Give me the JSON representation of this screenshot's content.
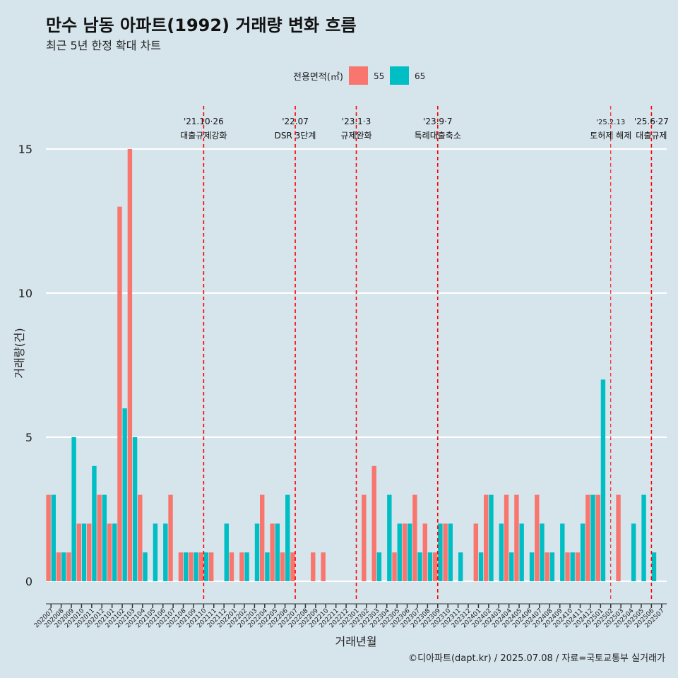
{
  "chart_data": {
    "type": "bar",
    "title": "만수 남동 아파트(1992) 거래량 변화 흐름",
    "subtitle": "최근 5년 한정 확대 차트",
    "xlabel": "거래년월",
    "ylabel": "거래량(건)",
    "caption": "©디아파트(dapt.kr) / 2025.07.08 / 자료=국토교통부 실거래가",
    "legend": {
      "title": "전용면적(㎡)",
      "position": "top"
    },
    "ylim": [
      -0.7,
      16.5
    ],
    "yticks": [
      0,
      5,
      10,
      15
    ],
    "categories": [
      "202007",
      "202008",
      "202009",
      "202010",
      "202011",
      "202012",
      "202101",
      "202102",
      "202103",
      "202104",
      "202105",
      "202106",
      "202107",
      "202108",
      "202109",
      "202110",
      "202111",
      "202112",
      "202201",
      "202202",
      "202203",
      "202204",
      "202205",
      "202206",
      "202207",
      "202208",
      "202209",
      "202210",
      "202211",
      "202212",
      "202301",
      "202302",
      "202303",
      "202304",
      "202305",
      "202306",
      "202307",
      "202308",
      "202309",
      "202310",
      "202311",
      "202312",
      "202401",
      "202402",
      "202403",
      "202404",
      "202405",
      "202406",
      "202407",
      "202408",
      "202409",
      "202410",
      "202411",
      "202412",
      "202501",
      "202502",
      "202503",
      "202504",
      "202505",
      "202506",
      "202507"
    ],
    "series": [
      {
        "name": "55",
        "color": "#f8766d",
        "values": [
          3,
          1,
          1,
          2,
          2,
          3,
          2,
          13,
          15,
          3,
          0,
          0,
          3,
          1,
          1,
          1,
          1,
          0,
          1,
          1,
          0,
          3,
          2,
          1,
          1,
          0,
          1,
          1,
          0,
          0,
          0,
          3,
          4,
          0,
          1,
          2,
          3,
          2,
          1,
          2,
          0,
          0,
          2,
          3,
          0,
          3,
          3,
          0,
          3,
          1,
          0,
          1,
          1,
          3,
          3,
          0,
          3,
          0,
          0,
          0,
          0
        ]
      },
      {
        "name": "65",
        "color": "#00bfc4",
        "values": [
          3,
          1,
          5,
          2,
          4,
          3,
          2,
          6,
          5,
          1,
          2,
          2,
          0,
          1,
          1,
          1,
          0,
          2,
          0,
          1,
          2,
          1,
          2,
          3,
          0,
          0,
          0,
          0,
          0,
          0,
          0,
          0,
          1,
          3,
          2,
          2,
          1,
          1,
          2,
          2,
          1,
          0,
          1,
          3,
          2,
          1,
          2,
          1,
          2,
          1,
          2,
          1,
          2,
          3,
          7,
          0,
          0,
          2,
          3,
          1,
          0
        ]
      }
    ],
    "events": [
      {
        "month": "202110",
        "line1": "'21.10·26",
        "line2": "대출규제강화"
      },
      {
        "month": "202207",
        "line1": "'22.07",
        "line2": "DSR 3단계"
      },
      {
        "month": "202301",
        "line1": "'23.1·3",
        "line2": "규제완화"
      },
      {
        "month": "202309",
        "line1": "'23.9·7",
        "line2": "특례대출축소"
      },
      {
        "month": "202502",
        "line1": "'25.2.13",
        "line2": "토허제 해제"
      },
      {
        "month": "202506",
        "line1": "'25.6·27",
        "line2": "대출규제"
      }
    ]
  }
}
